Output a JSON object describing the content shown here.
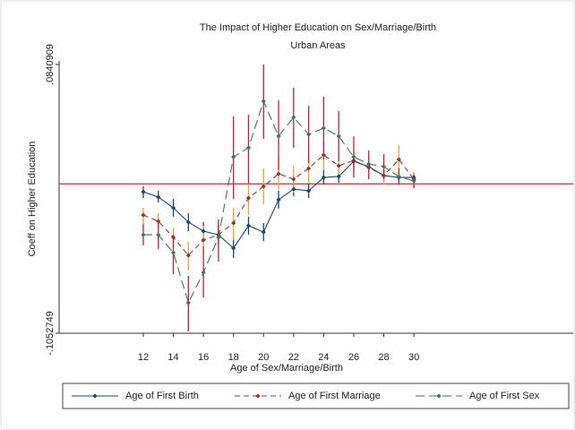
{
  "chart_data": {
    "type": "line",
    "title": "The Impact of Higher Education on Sex/Marriage/Birth",
    "subtitle": "Urban Areas",
    "x_label": "Age of Sex/Marriage/Birth",
    "y_label": "Coeff on Higher Education",
    "x": [
      12,
      13,
      14,
      15,
      16,
      17,
      18,
      19,
      20,
      21,
      22,
      23,
      24,
      25,
      26,
      27,
      28,
      29,
      30
    ],
    "xlim": [
      6.4,
      40.6
    ],
    "xticks": [
      12,
      14,
      16,
      18,
      20,
      22,
      24,
      26,
      28,
      30
    ],
    "ylim": [
      -0.1052749,
      0.0840909
    ],
    "yticks": [
      {
        "value": -0.1052749,
        "label": "-.1052749"
      },
      {
        "value": 0.0840909,
        "label": ".0840909"
      }
    ],
    "yline": 0,
    "yline_color": "#c8283a",
    "legend_position": "bottom",
    "series": [
      {
        "name": "Age of First Birth",
        "color": "#1a476f",
        "ci_color": "#1a476f",
        "dash": "solid",
        "values": [
          -0.0056,
          -0.0093,
          -0.0169,
          -0.027,
          -0.0333,
          -0.0359,
          -0.0453,
          -0.0295,
          -0.034,
          -0.0112,
          -0.0037,
          -0.0049,
          0.0045,
          0.0052,
          0.0159,
          0.0121,
          0.0058,
          0.0045,
          0.0045
        ],
        "ci_low": [
          -0.01,
          -0.0131,
          -0.0232,
          -0.0333,
          -0.0396,
          -0.0422,
          -0.0523,
          -0.0359,
          -0.0403,
          -0.0175,
          -0.0087,
          -0.01,
          -0.0005,
          0.0008,
          0.0115,
          0.0083,
          0.002,
          0.0014,
          0.0014
        ],
        "ci_high": [
          -0.0018,
          -0.0049,
          -0.0106,
          -0.0207,
          -0.027,
          -0.0295,
          -0.0377,
          -0.0232,
          -0.0276,
          -0.0049,
          0.0014,
          0.0001,
          0.0096,
          0.0096,
          0.0203,
          0.0159,
          0.0096,
          0.0077,
          0.0077
        ]
      },
      {
        "name": "Age of First Marriage",
        "color": "#90353b",
        "ci_color": "#e8a33d",
        "dash": "dashed",
        "values": [
          -0.022,
          -0.0264,
          -0.0377,
          -0.0504,
          -0.0396,
          -0.0359,
          -0.0276,
          -0.01,
          -0.0018,
          0.0071,
          0.0033,
          0.0109,
          0.0203,
          0.0128,
          0.0165,
          0.0115,
          0.0058,
          0.0172,
          0.0033
        ],
        "ci_low": [
          -0.0283,
          -0.0314,
          -0.0441,
          -0.0611,
          -0.0504,
          -0.0441,
          -0.0396,
          -0.022,
          -0.0144,
          -0.0043,
          -0.0062,
          0.0001,
          0.0096,
          0.0045,
          0.0083,
          0.0045,
          -0.0005,
          0.0064,
          -0.003
        ],
        "ci_high": [
          -0.0169,
          -0.0207,
          -0.0314,
          -0.0409,
          -0.0295,
          -0.0283,
          -0.0169,
          0.0001,
          0.0109,
          0.019,
          0.0128,
          0.021,
          0.0298,
          0.021,
          0.0235,
          0.0184,
          0.0121,
          0.0273,
          0.0083
        ]
      },
      {
        "name": "Age of First Sex",
        "color": "#3c7a4a",
        "ci_color": "#c01f3f",
        "dash": "longdash",
        "values": [
          -0.0359,
          -0.0359,
          -0.0485,
          -0.0838,
          -0.0624,
          -0.0377,
          0.019,
          0.0254,
          0.0582,
          0.0336,
          0.0468,
          0.0348,
          0.0393,
          0.0336,
          0.019,
          0.014,
          0.0121,
          0.0052,
          0.002
        ],
        "ci_low": [
          -0.0434,
          -0.046,
          -0.0636,
          -0.104,
          -0.08,
          -0.0548,
          -0.0106,
          0.0001,
          0.0317,
          0.0096,
          0.0254,
          0.0146,
          0.0172,
          0.0159,
          0.0045,
          0.0033,
          0.0033,
          -0.0005,
          -0.003
        ],
        "ci_high": [
          -0.0283,
          -0.027,
          -0.0359,
          -0.0649,
          -0.0441,
          -0.0251,
          0.0475,
          0.0487,
          0.0841,
          0.0588,
          0.0677,
          0.055,
          0.0614,
          0.0513,
          0.0336,
          0.0235,
          0.021,
          0.0109,
          0.0064
        ]
      }
    ]
  }
}
